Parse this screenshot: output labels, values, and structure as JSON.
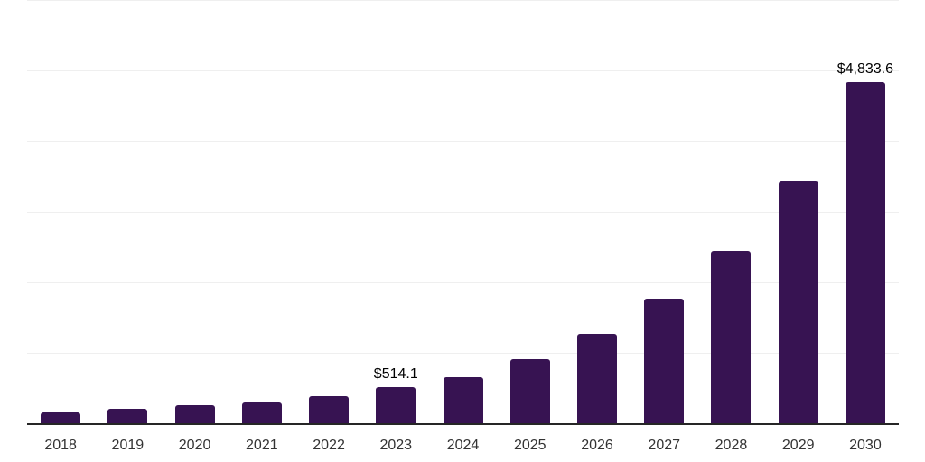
{
  "chart_data": {
    "type": "bar",
    "title": "",
    "xlabel": "",
    "ylabel": "",
    "categories": [
      "2018",
      "2019",
      "2020",
      "2021",
      "2022",
      "2023",
      "2024",
      "2025",
      "2026",
      "2027",
      "2028",
      "2029",
      "2030"
    ],
    "values": [
      160,
      210,
      255,
      300,
      380,
      514.1,
      655,
      905,
      1270,
      1760,
      2450,
      3435,
      4833.6
    ],
    "data_labels": {
      "2023": "$514.1",
      "2030": "$4,833.6"
    },
    "ylim": [
      0,
      6000
    ],
    "gridline_values": [
      1000,
      2000,
      3000,
      4000,
      5000,
      6000
    ],
    "grid": "on",
    "legend": "none",
    "colors": {
      "bar": "#371352",
      "axis_line": "#262626",
      "gridline": "#efefef",
      "x_label": "#333333",
      "value_label": "#000000",
      "background": "#ffffff"
    }
  }
}
